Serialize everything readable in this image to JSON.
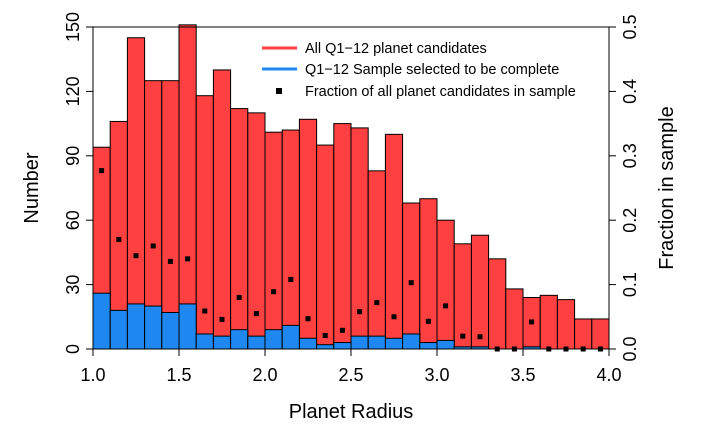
{
  "chart_data": {
    "type": "bar",
    "xlabel": "Planet Radius",
    "ylabel": "Number",
    "ylabel_right": "Fraction in sample",
    "xlim": [
      1.0,
      4.0
    ],
    "ylim": [
      0,
      150
    ],
    "ylim_right": [
      0,
      0.5
    ],
    "x_ticks": [
      "1.0",
      "1.5",
      "2.0",
      "2.5",
      "3.0",
      "3.5",
      "4.0"
    ],
    "y_ticks": [
      "0",
      "30",
      "60",
      "90",
      "120",
      "150"
    ],
    "y_ticks_right": [
      "0.0",
      "0.1",
      "0.2",
      "0.3",
      "0.4",
      "0.5"
    ],
    "bin_width": 0.1,
    "bin_starts": [
      1.0,
      1.1,
      1.2,
      1.3,
      1.4,
      1.5,
      1.6,
      1.7,
      1.8,
      1.9,
      2.0,
      2.1,
      2.2,
      2.3,
      2.4,
      2.5,
      2.6,
      2.7,
      2.8,
      2.9,
      3.0,
      3.1,
      3.2,
      3.3,
      3.4,
      3.5,
      3.6,
      3.7,
      3.8,
      3.9
    ],
    "legend_position": "top-right",
    "grid": false,
    "series": [
      {
        "name": "All Q1−12 planet candidates",
        "color": "#ff4040",
        "values": [
          94,
          106,
          145,
          125,
          125,
          151,
          118,
          130,
          112,
          110,
          101,
          102,
          107,
          95,
          105,
          103,
          83,
          100,
          68,
          70,
          60,
          49,
          53,
          42,
          28,
          24,
          25,
          23,
          14,
          14
        ]
      },
      {
        "name": "Q1−12 Sample selected to be complete",
        "color": "#1e88f0",
        "values": [
          26,
          18,
          21,
          20,
          17,
          21,
          7,
          6,
          9,
          6,
          9,
          11,
          5,
          2,
          3,
          6,
          6,
          5,
          7,
          3,
          4,
          1,
          1,
          0,
          0,
          1,
          0,
          0,
          0,
          0
        ]
      },
      {
        "name": "Fraction of all planet candidates in sample",
        "color": "#000000",
        "marker": "square",
        "axis": "right",
        "values": [
          0.277,
          0.17,
          0.145,
          0.16,
          0.136,
          0.14,
          0.059,
          0.046,
          0.08,
          0.055,
          0.089,
          0.108,
          0.047,
          0.021,
          0.029,
          0.058,
          0.072,
          0.05,
          0.103,
          0.043,
          0.067,
          0.02,
          0.019,
          0.0,
          0.0,
          0.042,
          0.0,
          0.0,
          0.0,
          0.0
        ]
      }
    ]
  }
}
